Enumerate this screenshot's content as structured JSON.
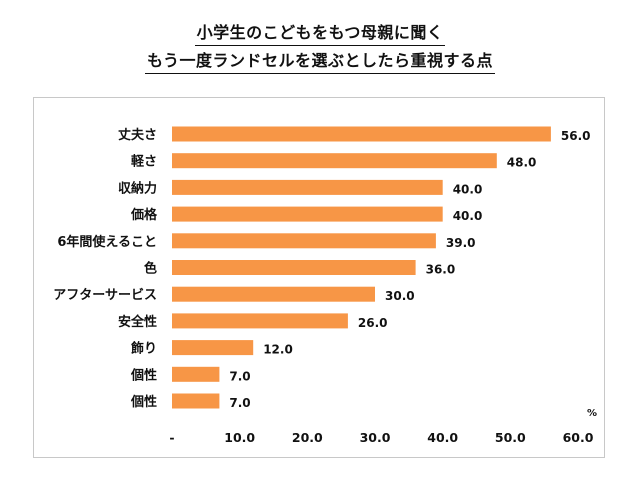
{
  "chart_data": {
    "type": "bar",
    "orientation": "horizontal",
    "title_lines": [
      "小学生のこどもをもつ母親に聞く",
      "もう一度ランドセルを選ぶとしたら重視する点"
    ],
    "categories": [
      "丈夫さ",
      "軽さ",
      "収納力",
      "価格",
      "6年間使えること",
      "色",
      "アフターサービス",
      "安全性",
      "飾り",
      "個性",
      "個性"
    ],
    "values": [
      56.0,
      48.0,
      40.0,
      40.0,
      39.0,
      36.0,
      30.0,
      26.0,
      12.0,
      7.0,
      7.0
    ],
    "value_labels": [
      "56.0",
      "48.0",
      "40.0",
      "40.0",
      "39.0",
      "36.0",
      "30.0",
      "26.0",
      "12.0",
      "7.0",
      "7.0"
    ],
    "x_ticks": [
      "-",
      "10.0",
      "20.0",
      "30.0",
      "40.0",
      "50.0",
      "60.0"
    ],
    "xlim": [
      0,
      60
    ],
    "unit": "%",
    "grid": false,
    "bar_color": "#f79646"
  }
}
